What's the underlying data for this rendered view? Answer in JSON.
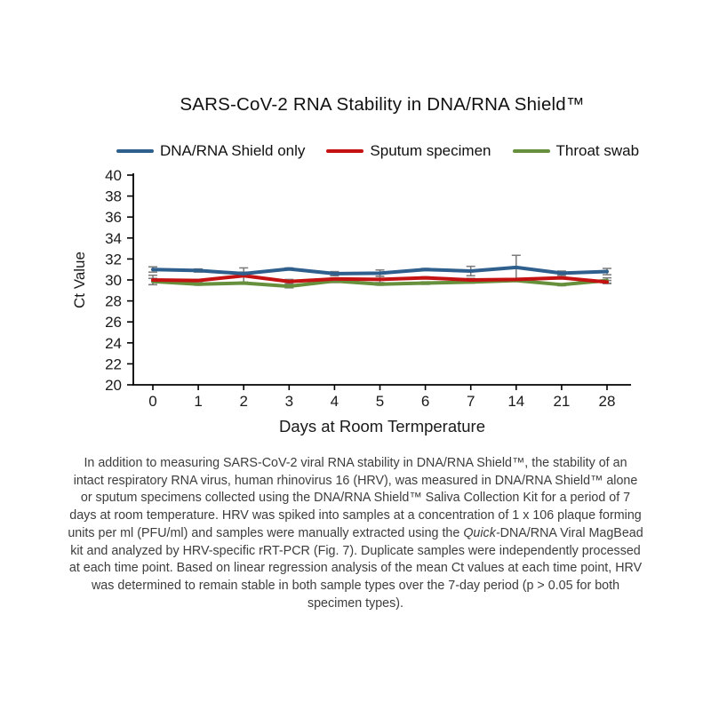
{
  "chart_data": {
    "type": "line",
    "title": "SARS-CoV-2 RNA Stability in DNA/RNA Shield™",
    "xlabel": "Days at Room Termperature",
    "ylabel": "Ct Value",
    "ylim": [
      20,
      40
    ],
    "ytick_step": 2,
    "grid": false,
    "legend_position": "top",
    "axis_color": "#000000",
    "error_bar_color": "#7a7a7a",
    "categories": [
      "0",
      "1",
      "2",
      "3",
      "4",
      "5",
      "6",
      "7",
      "14",
      "21",
      "28"
    ],
    "series": [
      {
        "name": "DNA/RNA Shield only",
        "color": "#2f5f8c",
        "values": [
          31.0,
          30.9,
          30.6,
          31.05,
          30.6,
          30.65,
          31.0,
          30.85,
          31.2,
          30.65,
          30.8
        ],
        "errors": [
          0.25,
          0.15,
          0.15,
          0.1,
          0.2,
          0.3,
          0.1,
          0.45,
          1.15,
          0.2,
          0.3
        ]
      },
      {
        "name": "Sputum specimen",
        "color": "#c41212",
        "values": [
          30.0,
          29.95,
          30.4,
          29.85,
          30.1,
          30.05,
          30.2,
          30.0,
          30.05,
          30.2,
          29.8
        ],
        "errors": [
          0.45,
          0.1,
          0.75,
          0.2,
          0.1,
          0.3,
          0.1,
          0.15,
          0.1,
          0.1,
          0.15
        ]
      },
      {
        "name": "Throat swab",
        "color": "#66903c",
        "values": [
          29.85,
          29.6,
          29.7,
          29.4,
          29.9,
          29.6,
          29.7,
          29.8,
          29.95,
          29.55,
          29.95
        ],
        "errors": [
          0.3,
          0.1,
          0.1,
          0.15,
          0.15,
          0.1,
          0.12,
          0.1,
          0.1,
          0.1,
          0.25
        ]
      }
    ]
  },
  "caption": {
    "text_before": "In addition to measuring SARS-CoV-2 viral RNA stability in DNA/RNA Shield™, the stability of an intact respiratory RNA virus, human rhinovirus 16 (HRV), was measured in DNA/RNA Shield™ alone or sputum specimens collected using the DNA/RNA Shield™ Saliva Collection Kit for a period of 7 days at room temperature. HRV was spiked into samples at a concentration of 1 x 106 plaque forming units per ml (PFU/ml) and samples were manually extracted using the ",
    "italic_word": "Quick-",
    "text_after": "DNA/RNA Viral MagBead kit and analyzed by HRV-specific rRT-PCR (Fig. 7). Duplicate samples were independently processed at each time point. Based on linear regression analysis of the mean Ct values at each time point, HRV was determined to remain stable in both sample types over the 7-day period (p > 0.05 for both specimen types)."
  }
}
